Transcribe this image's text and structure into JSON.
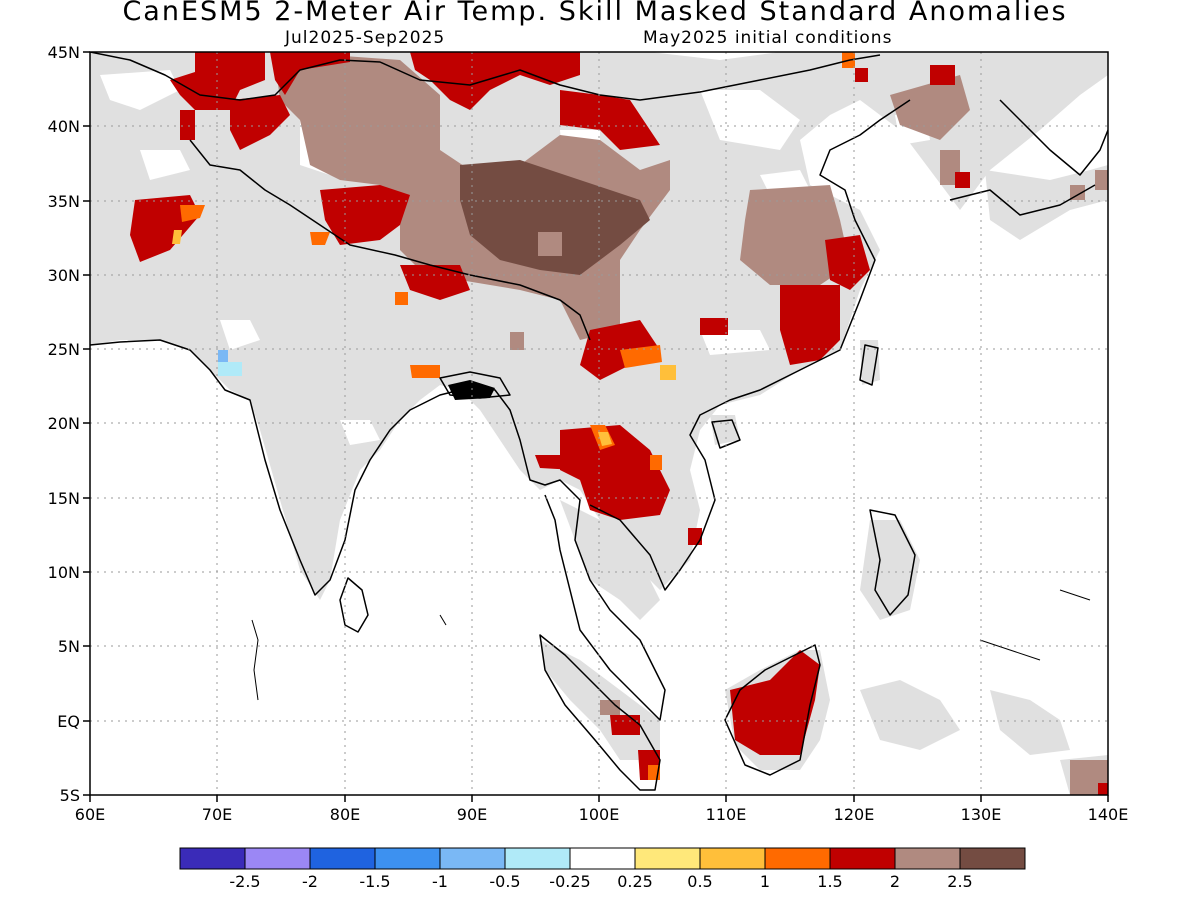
{
  "title": "CanESM5 2-Meter Air Temp. Skill Masked Standard Anomalies",
  "valid_period": "Jul2025-Sep2025",
  "initial_conditions": "May2025 initial conditions",
  "lon_labels": [
    "60E",
    "70E",
    "80E",
    "90E",
    "100E",
    "110E",
    "120E",
    "130E",
    "140E"
  ],
  "lat_labels": [
    "45N",
    "40N",
    "35N",
    "30N",
    "25N",
    "20N",
    "15N",
    "10N",
    "5N",
    "EQ",
    "5S"
  ],
  "colorbar": {
    "colors": [
      "#3a2bb8",
      "#9b87f5",
      "#1f63e0",
      "#3d91f0",
      "#7ab8f5",
      "#b0eaf8",
      "#ffffff",
      "#ffe87a",
      "#ffbf3a",
      "#ff6a00",
      "#c00000",
      "#b08a80",
      "#744c42"
    ],
    "tick_labels": [
      "-2.5",
      "-2",
      "-1.5",
      "-1",
      "-0.5",
      "-0.25",
      "0.25",
      "0.5",
      "1",
      "1.5",
      "2",
      "2.5"
    ]
  },
  "legend_colors": {
    "masked": "#e0e0e0",
    "land_outline": "#000000"
  }
}
